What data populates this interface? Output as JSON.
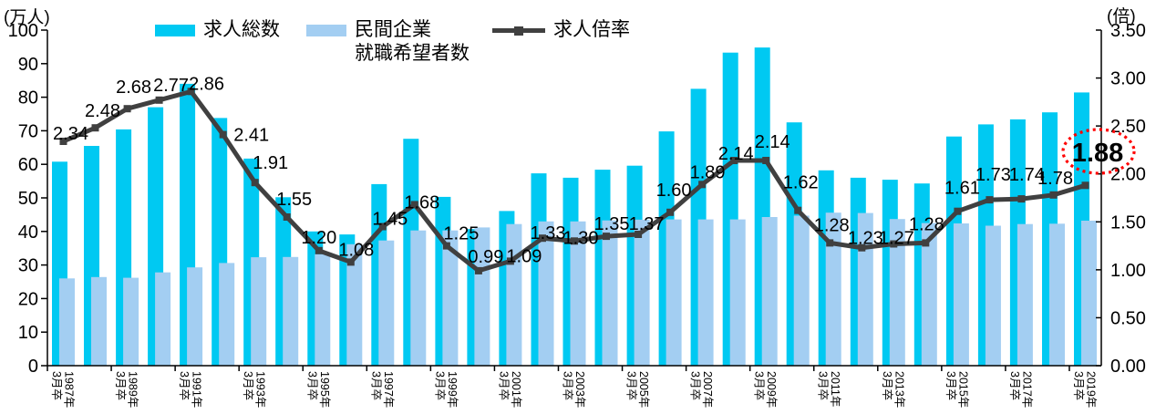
{
  "chart_data": {
    "type": "combo-bar-line",
    "title": "",
    "categories": [
      1987,
      1988,
      1989,
      1990,
      1991,
      1992,
      1993,
      1994,
      1995,
      1996,
      1997,
      1998,
      1999,
      2000,
      2001,
      2002,
      2003,
      2004,
      2005,
      2006,
      2007,
      2008,
      2009,
      2010,
      2011,
      2012,
      2013,
      2014,
      2015,
      2016,
      2017,
      2018,
      2019
    ],
    "category_suffix": "年3月卒",
    "series": [
      {
        "name": "求人総数",
        "type": "bar",
        "axis": "left",
        "color": "#00C9F2",
        "values": [
          60.8,
          65.5,
          70.4,
          77.0,
          84.0,
          73.8,
          61.7,
          50.2,
          40.0,
          39.1,
          54.1,
          67.6,
          50.3,
          40.7,
          46.1,
          57.3,
          56.0,
          58.4,
          59.6,
          69.8,
          82.5,
          93.3,
          94.8,
          72.5,
          58.2,
          56.0,
          55.4,
          54.3,
          68.3,
          71.9,
          73.4,
          75.5,
          81.4
        ]
      },
      {
        "name": "民間企業就職希望者数",
        "name_lines": [
          "民間企業",
          "就職希望者数"
        ],
        "type": "bar",
        "axis": "left",
        "color": "#A3CEF2",
        "values": [
          26.0,
          26.4,
          26.2,
          27.8,
          29.3,
          30.6,
          32.3,
          32.4,
          33.2,
          36.2,
          37.3,
          40.3,
          40.3,
          41.2,
          42.2,
          43.0,
          43.0,
          43.3,
          43.5,
          43.6,
          43.6,
          43.6,
          44.3,
          44.7,
          45.6,
          45.5,
          43.7,
          42.5,
          42.4,
          41.7,
          42.2,
          42.3,
          43.2
        ]
      },
      {
        "name": "求人倍率",
        "type": "line",
        "axis": "right",
        "color": "#404040",
        "values": [
          2.34,
          2.48,
          2.68,
          2.77,
          2.86,
          2.41,
          1.91,
          1.55,
          1.2,
          1.08,
          1.45,
          1.68,
          1.25,
          0.99,
          1.09,
          1.33,
          1.3,
          1.35,
          1.37,
          1.6,
          1.89,
          2.14,
          2.14,
          1.62,
          1.28,
          1.23,
          1.27,
          1.28,
          1.61,
          1.73,
          1.74,
          1.78,
          1.88
        ],
        "point_labels": [
          "2.34",
          "2.48",
          "2.68",
          "2.77",
          "2.86",
          "2.41",
          "1.91",
          "1.55",
          "1.20",
          "1.08",
          "1.45",
          "1.68",
          "1.25",
          "0.99",
          "1.09",
          "1.33",
          "1.30",
          "1.35",
          "1.37",
          "1.60",
          "1.89",
          "2.14",
          "2.14",
          "1.62",
          "1.28",
          "1.23",
          "1.27",
          "1.28",
          "1.61",
          "1.73",
          "1.74",
          "1.78",
          "1.88"
        ]
      }
    ],
    "left_axis": {
      "unit": "(万人)",
      "min": 0,
      "max": 100,
      "step": 10
    },
    "right_axis": {
      "unit": "(倍)",
      "min": 0,
      "max": 3.5,
      "step": 0.5,
      "decimals": 2
    },
    "x_axis": {
      "tick_labels": [
        "1987年",
        "1989年",
        "1991年",
        "1993年",
        "1995年",
        "1997年",
        "1999年",
        "2001年",
        "2003年",
        "2005年",
        "2007年",
        "2009年",
        "2011年",
        "2013年",
        "2015年",
        "2017年",
        "2019年"
      ],
      "tick_label_line2": "3月卒",
      "label_interval": 2
    },
    "annotation": {
      "text": "1.88",
      "shape": "dotted-ellipse",
      "color": "#FF0000",
      "target": "last-line-point-label"
    },
    "legend_position": "top",
    "grid": false
  }
}
